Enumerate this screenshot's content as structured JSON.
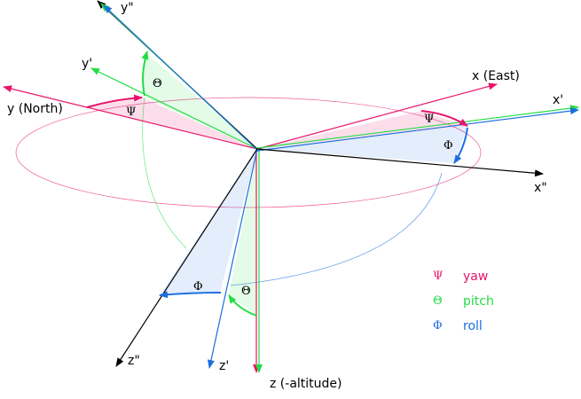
{
  "axes": {
    "y_north": "y (North)",
    "x_east": "x (East)",
    "z_alt": "z (-altitude)",
    "y_prime": "y'",
    "x_prime": "x'",
    "z_prime": "z'",
    "y_dprime": "y\"",
    "x_dprime": "x\"",
    "z_dprime": "z\""
  },
  "angles": {
    "psi": "Ψ",
    "theta": "Θ",
    "phi": "Φ"
  },
  "legend": [
    {
      "symbol": "Ψ",
      "label": "yaw",
      "color": "#e8146c"
    },
    {
      "symbol": "Θ",
      "label": "pitch",
      "color": "#22dd44"
    },
    {
      "symbol": "Φ",
      "label": "roll",
      "color": "#1a6ee0"
    }
  ],
  "colors": {
    "yaw": "#e8146c",
    "pitch": "#22dd44",
    "roll": "#1a6ee0",
    "axis": "#000000"
  }
}
